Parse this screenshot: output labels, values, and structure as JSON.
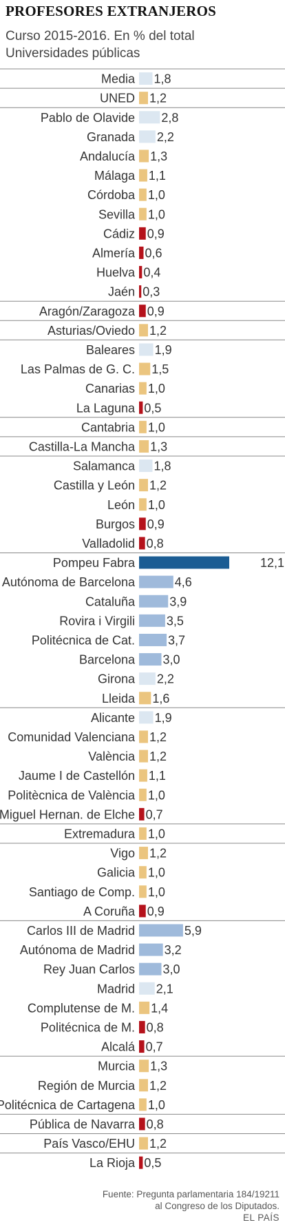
{
  "header": {
    "title": "PROFESORES EXTRANJEROS",
    "subtitle_1": "Curso 2015-2016. En % del total",
    "subtitle_2": "Universidades públicas"
  },
  "footer": {
    "source_1": "Fuente: Pregunta parlamentaria 184/19211",
    "source_2": "al Congreso de los Diputados.",
    "brand": "EL PAÍS"
  },
  "colors": {
    "red": "#b5121b",
    "yellow": "#ebc57f",
    "light_blue": "#dce7f1",
    "mid_blue": "#9fbadb",
    "dark_blue": "#1b5c93",
    "separator": "#888888"
  },
  "chart_data": {
    "type": "bar",
    "orientation": "horizontal",
    "xlim": [
      0,
      12.1
    ],
    "categories": [
      "Media",
      "UNED",
      "Pablo de Olavide",
      "Granada",
      "Andalucía",
      "Málaga",
      "Córdoba",
      "Sevilla",
      "Cádiz",
      "Almería",
      "Huelva",
      "Jaén",
      "Aragón/Zaragoza",
      "Asturias/Oviedo",
      "Baleares",
      "Las Palmas de G. C.",
      "Canarias",
      "La Laguna",
      "Cantabria",
      "Castilla-La Mancha",
      "Salamanca",
      "Castilla y León",
      "León",
      "Burgos",
      "Valladolid",
      "Pompeu Fabra",
      "Autónoma de Barcelona",
      "Cataluña",
      "Rovira i Virgili",
      "Politécnica de Cat.",
      "Barcelona",
      "Girona",
      "Lleida",
      "Alicante",
      "Comunidad Valenciana",
      "València",
      "Jaume I de Castellón",
      "Politècnica de València",
      "Miguel Hernan. de Elche",
      "Extremadura",
      "Vigo",
      "Galicia",
      "Santiago de Comp.",
      "A Coruña",
      "Carlos III de Madrid",
      "Autónoma de Madrid",
      "Rey Juan Carlos",
      "Madrid",
      "Complutense de M.",
      "Politécnica de M.",
      "Alcalá",
      "Murcia",
      "Región de Murcia",
      "Politécnica de Cartagena",
      "Pública de Navarra",
      "País Vasco/EHU",
      "La Rioja"
    ],
    "values": [
      1.8,
      1.2,
      2.8,
      2.2,
      1.3,
      1.1,
      1.0,
      1.0,
      0.9,
      0.6,
      0.4,
      0.3,
      0.9,
      1.2,
      1.9,
      1.5,
      1.0,
      0.5,
      1.0,
      1.3,
      1.8,
      1.2,
      1.0,
      0.9,
      0.8,
      12.1,
      4.6,
      3.9,
      3.5,
      3.7,
      3.0,
      2.2,
      1.6,
      1.9,
      1.2,
      1.2,
      1.1,
      1.0,
      0.7,
      1.0,
      1.2,
      1.0,
      1.0,
      0.9,
      5.9,
      3.2,
      3.0,
      2.1,
      1.4,
      0.8,
      0.7,
      1.3,
      1.2,
      1.0,
      0.8,
      1.2,
      0.5
    ],
    "value_labels": [
      "1,8",
      "1,2",
      "2,8",
      "2,2",
      "1,3",
      "1,1",
      "1,0",
      "1,0",
      "0,9",
      "0,6",
      "0,4",
      "0,3",
      "0,9",
      "1,2",
      "1,9",
      "1,5",
      "1,0",
      "0,5",
      "1,0",
      "1,3",
      "1,8",
      "1,2",
      "1,0",
      "0,9",
      "0,8",
      "12,1",
      "4,6",
      "3,9",
      "3,5",
      "3,7",
      "3,0",
      "2,2",
      "1,6",
      "1,9",
      "1,2",
      "1,2",
      "1,1",
      "1,0",
      "0,7",
      "1,0",
      "1,2",
      "1,0",
      "1,0",
      "0,9",
      "5,9",
      "3,2",
      "3,0",
      "2,1",
      "1,4",
      "0,8",
      "0,7",
      "1,3",
      "1,2",
      "1,0",
      "0,8",
      "1,2",
      "0,5"
    ],
    "color_keys": [
      "light_blue",
      "yellow",
      "light_blue",
      "light_blue",
      "yellow",
      "yellow",
      "yellow",
      "yellow",
      "red",
      "red",
      "red",
      "red",
      "red",
      "yellow",
      "light_blue",
      "yellow",
      "yellow",
      "red",
      "yellow",
      "yellow",
      "light_blue",
      "yellow",
      "yellow",
      "red",
      "red",
      "dark_blue",
      "mid_blue",
      "mid_blue",
      "mid_blue",
      "mid_blue",
      "mid_blue",
      "light_blue",
      "yellow",
      "light_blue",
      "yellow",
      "yellow",
      "yellow",
      "yellow",
      "red",
      "yellow",
      "yellow",
      "yellow",
      "yellow",
      "red",
      "mid_blue",
      "mid_blue",
      "mid_blue",
      "light_blue",
      "yellow",
      "red",
      "red",
      "yellow",
      "yellow",
      "yellow",
      "red",
      "yellow",
      "red"
    ],
    "group_breaks_after": [
      0,
      1,
      11,
      12,
      13,
      17,
      18,
      19,
      24,
      32,
      38,
      39,
      43,
      50,
      53,
      54,
      55
    ]
  }
}
